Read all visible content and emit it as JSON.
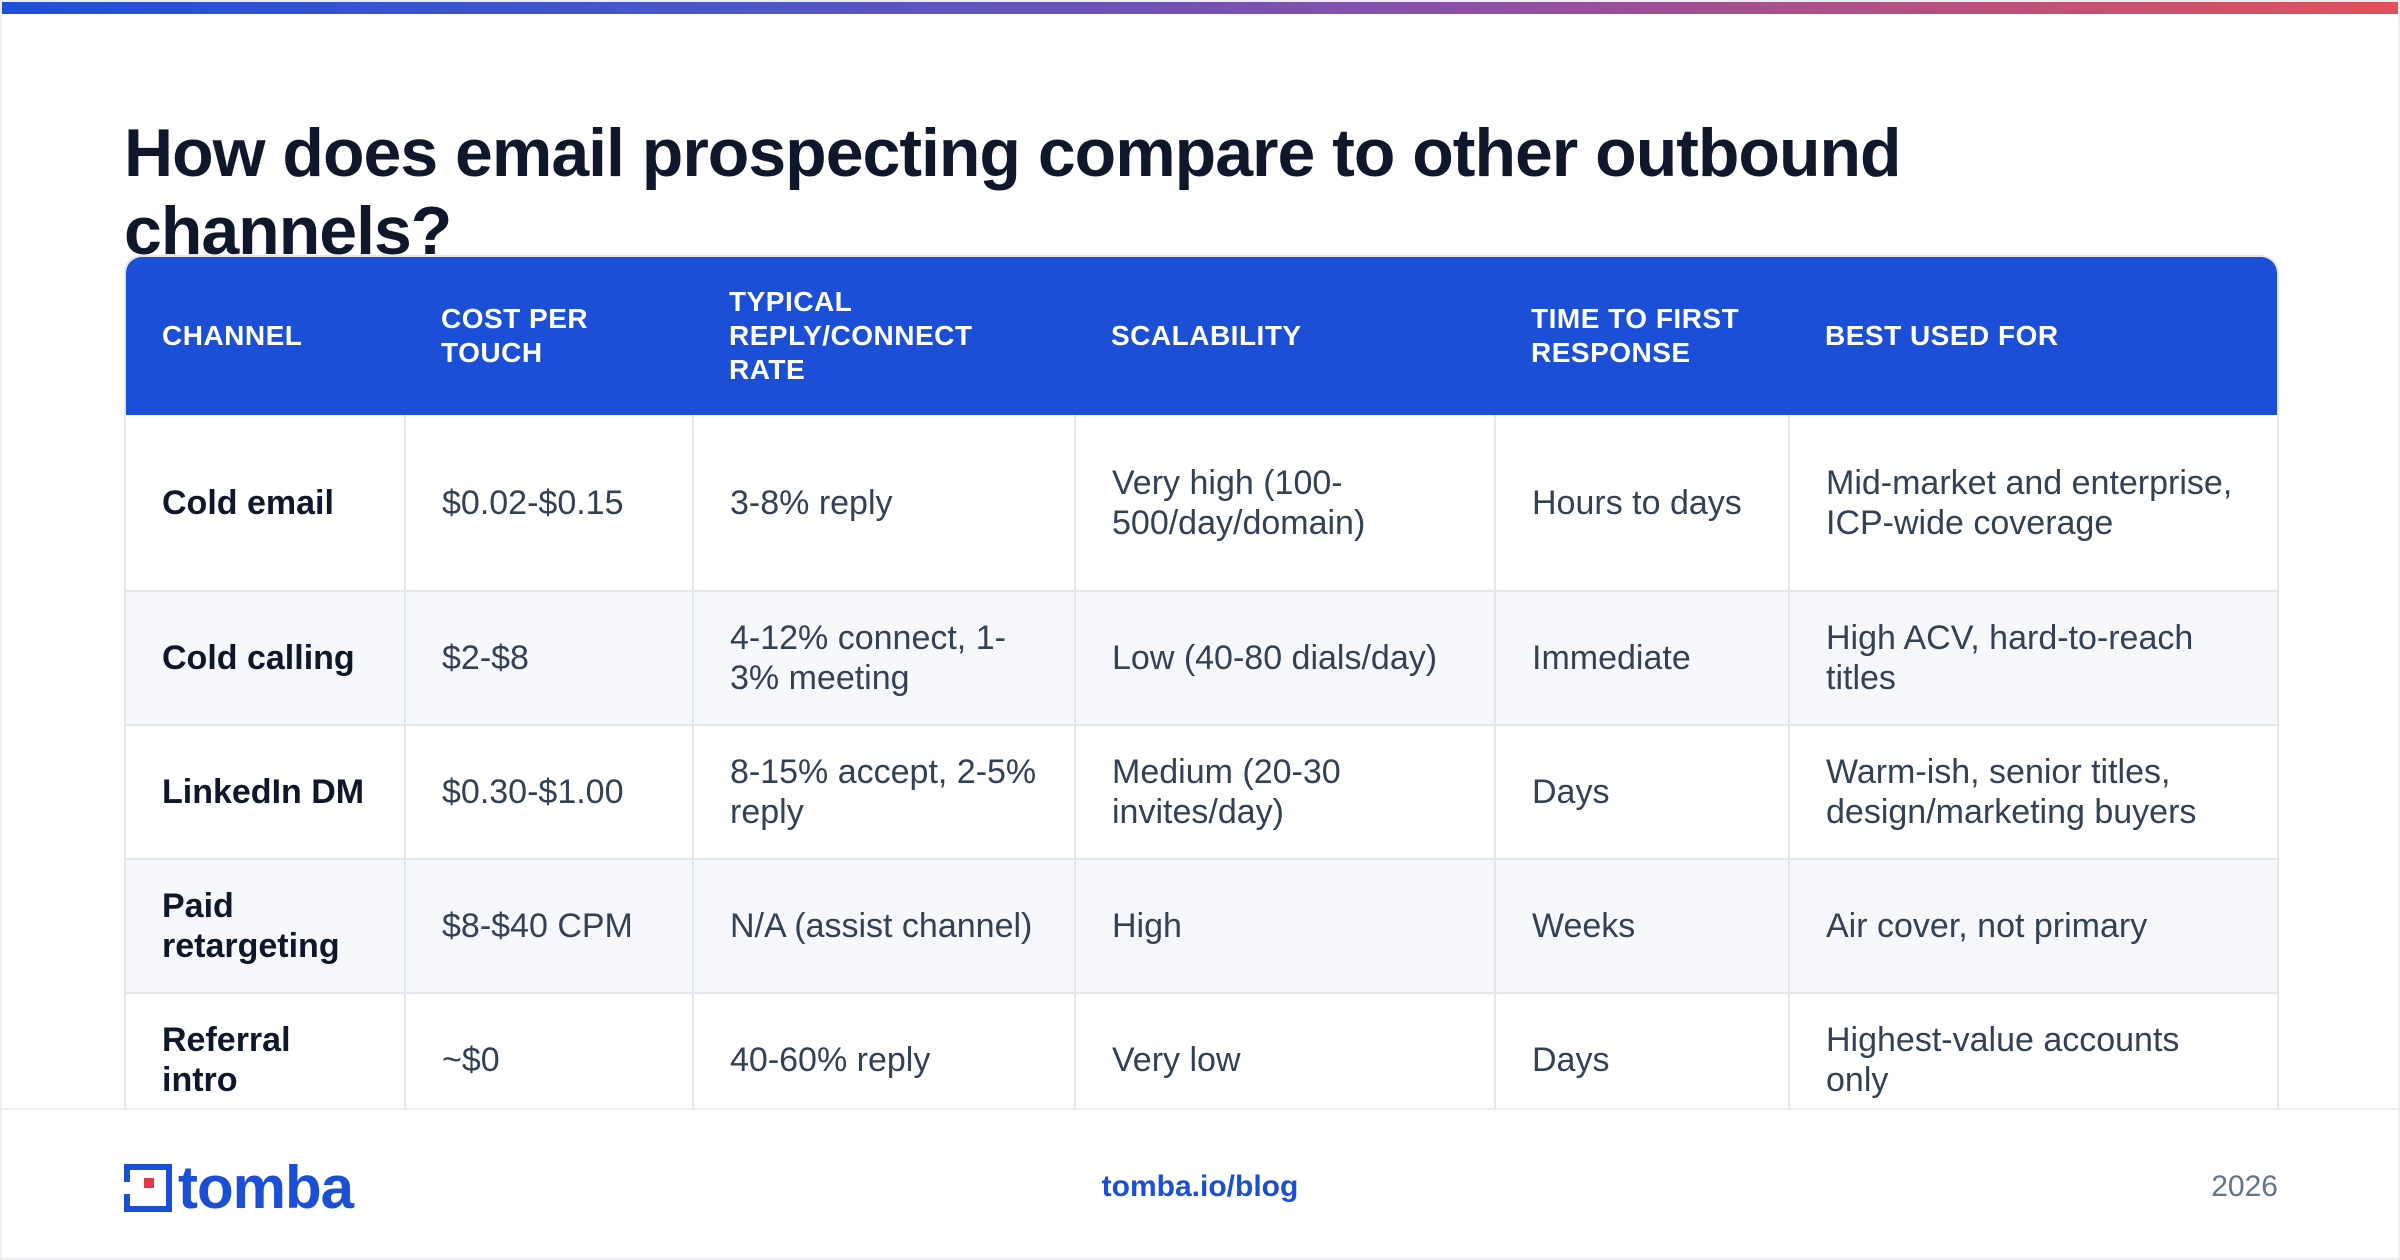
{
  "title": "How does email prospecting compare to other outbound channels?",
  "table": {
    "headers": [
      "Channel",
      "Cost per touch",
      "Typical reply/connect rate",
      "Scalability",
      "Time to first response",
      "Best used for"
    ],
    "rows": [
      [
        "Cold email",
        "$0.02-$0.15",
        "3-8% reply",
        "Very high (100-500/day/domain)",
        "Hours to days",
        "Mid-market and enterprise, ICP-wide coverage"
      ],
      [
        "Cold calling",
        "$2-$8",
        "4-12% connect, 1-3% meeting",
        "Low (40-80 dials/day)",
        "Immediate",
        "High ACV, hard-to-reach titles"
      ],
      [
        "LinkedIn DM",
        "$0.30-$1.00",
        "8-15% accept, 2-5% reply",
        "Medium (20-30 invites/day)",
        "Days",
        "Warm-ish, senior titles, design/marketing buyers"
      ],
      [
        "Paid retargeting",
        "$8-$40 CPM",
        "N/A (assist channel)",
        "High",
        "Weeks",
        "Air cover, not primary"
      ],
      [
        "Referral intro",
        "~$0",
        "40-60% reply",
        "Very low",
        "Days",
        "Highest-value accounts only"
      ]
    ]
  },
  "footer": {
    "logo_text": "tomba",
    "link": "tomba.io/blog",
    "year": "2026"
  },
  "colors": {
    "accent": "#1b4fd6",
    "title": "#0f172a",
    "body_text": "#334155",
    "border": "#e3e6ec",
    "logo_red": "#e2374a"
  }
}
